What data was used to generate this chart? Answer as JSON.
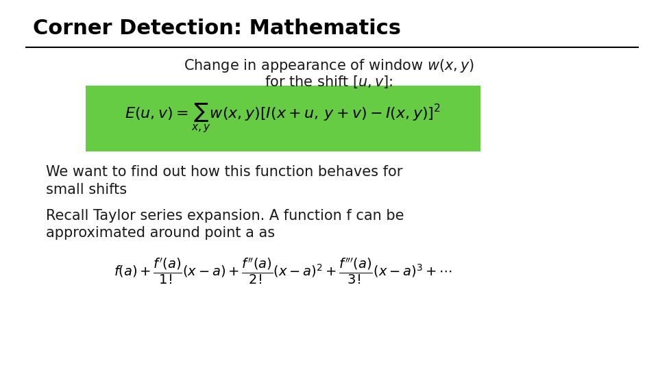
{
  "title": "Corner Detection: Mathematics",
  "subtitle_line1": "Change in appearance of window $w(x,y)$",
  "subtitle_line2": "for the shift $[u,v]$:",
  "formula1_bg": "#66cc44",
  "text1_line1": "We want to find out how this function behaves for",
  "text1_line2": "small shifts",
  "text2_line1": "Recall Taylor series expansion. A function f can be",
  "text2_line2": "approximated around point a as",
  "bg_color": "#ffffff",
  "title_color": "#000000",
  "text_color": "#1a1a1a",
  "line_color": "#000000",
  "title_fontsize": 22,
  "subtitle_fontsize": 15,
  "body_fontsize": 15,
  "formula_fontsize": 16,
  "formula2_fontsize": 14
}
